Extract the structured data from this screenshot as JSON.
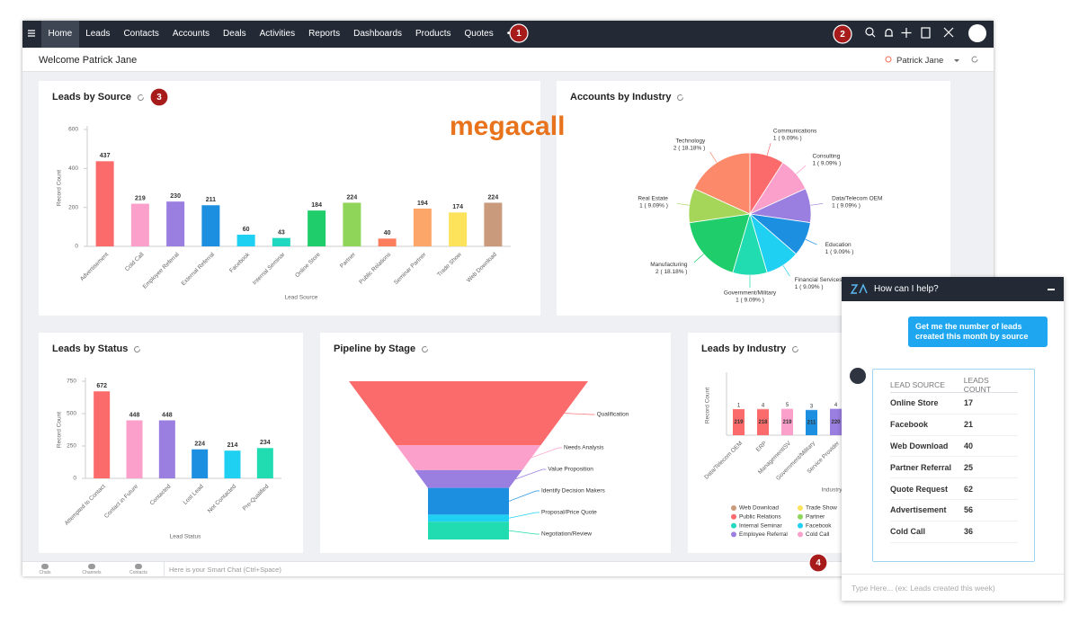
{
  "nav": {
    "items": [
      "Home",
      "Leads",
      "Contacts",
      "Accounts",
      "Deals",
      "Activities",
      "Reports",
      "Dashboards",
      "Products",
      "Quotes",
      "•••"
    ]
  },
  "callouts": [
    "1",
    "2",
    "3",
    "4"
  ],
  "header": {
    "welcome": "Welcome Patrick Jane",
    "user": "Patrick Jane"
  },
  "leads_by_source": {
    "type": "bar",
    "title": "Leads by Source",
    "logo": "megacall",
    "x_label": "Lead Source",
    "y_label": "Record Count",
    "categories": [
      "Advertisement",
      "Cold Call",
      "Employee Referral",
      "External Referral",
      "Facebook",
      "Internal Seminar",
      "Online Store",
      "Partner",
      "Public Relations",
      "Seminar Partner",
      "Trade Show",
      "Web Download"
    ],
    "values": [
      437,
      219,
      230,
      211,
      60,
      43,
      184,
      224,
      40,
      194,
      174,
      224
    ],
    "colors": [
      "#fc6b6b",
      "#fb9fcb",
      "#9a7ee0",
      "#1d8fe0",
      "#1fd0f2",
      "#20d8c0",
      "#1fce6a",
      "#8ed55a",
      "#fb7d5e",
      "#fca66a",
      "#fde25c",
      "#c99a7c"
    ],
    "ylim": [
      0,
      600
    ],
    "yticks": [
      0,
      200,
      400,
      600
    ]
  },
  "accounts_by_industry": {
    "type": "pie",
    "title": "Accounts by Industry",
    "categories": [
      "Communications",
      "Consulting",
      "Data/Telecom OEM",
      "Education",
      "Financial Services",
      "Government/Military",
      "Manufacturing",
      "Real Estate",
      "Technology"
    ],
    "values": [
      1,
      1,
      1,
      1,
      1,
      1,
      2,
      1,
      2
    ],
    "value_labels": [
      "1 ( 9.09% )",
      "1 ( 9.09% )",
      "1 ( 9.09% )",
      "1 ( 9.09% )",
      "1 ( 9.09% )",
      "1 ( 9.09% )",
      "2 ( 18.18% )",
      "1 ( 9.09% )",
      "2 ( 18.18% )"
    ],
    "colors": [
      "#fc6b6b",
      "#fb9fcb",
      "#9a7ee0",
      "#1d8fe0",
      "#1fd0f2",
      "#20dcb0",
      "#1fce6a",
      "#a5d65a",
      "#fc8a6a"
    ]
  },
  "leads_by_status": {
    "type": "bar",
    "title": "Leads by Status",
    "x_label": "Lead Status",
    "y_label": "Record Count",
    "categories": [
      "Attempted to Contact",
      "Contact in Future",
      "Contacted",
      "Lost Lead",
      "Not Contacted",
      "Pre-Qualified"
    ],
    "values": [
      672,
      448,
      448,
      224,
      214,
      234
    ],
    "colors": [
      "#fc6b6b",
      "#fb9fcb",
      "#9a7ee0",
      "#1d8fe0",
      "#1fd0f2",
      "#20dcb0"
    ],
    "ylim": [
      0,
      750
    ],
    "yticks": [
      0,
      250,
      500,
      750
    ]
  },
  "pipeline_by_stage": {
    "type": "funnel",
    "title": "Pipeline by Stage",
    "categories": [
      "Qualification",
      "Needs Analysis",
      "Value Proposition",
      "Identify Decision Makers",
      "Proposal/Price Quote",
      "Negotiation/Review"
    ],
    "values": [
      36,
      14,
      10,
      15,
      4,
      10
    ],
    "colors": [
      "#fc6b6b",
      "#fb9fcb",
      "#9a7ee0",
      "#1d8fe0",
      "#1fd0f2",
      "#20dcb0"
    ]
  },
  "leads_by_industry": {
    "type": "bar",
    "title": "Leads by Industry",
    "x_label": "Industry",
    "y_label": "Record Count",
    "categories": [
      "Data/Telecom OEM",
      "ERP",
      "ManagementISV",
      "Government/Military",
      "Service Provider"
    ],
    "values": [
      219,
      218,
      219,
      211,
      220
    ],
    "top_values": [
      1,
      4,
      5,
      3,
      4
    ],
    "colors": [
      "#fc6b6b",
      "#fc6b6b",
      "#fb9fcb",
      "#1d8fe0",
      "#9a7ee0"
    ],
    "ylim": [
      0,
      500
    ],
    "legend": [
      {
        "name": "Web Download",
        "color": "#c99a7c"
      },
      {
        "name": "Trade Show",
        "color": "#fde25c"
      },
      {
        "name": "Public Relations",
        "color": "#fc6b6b"
      },
      {
        "name": "Partner",
        "color": "#8ed55a"
      },
      {
        "name": "Internal Seminar",
        "color": "#20d8c0"
      },
      {
        "name": "Facebook",
        "color": "#1fd0f2"
      },
      {
        "name": "Employee Referral",
        "color": "#9a7ee0"
      },
      {
        "name": "Cold Call",
        "color": "#fb9fcb"
      }
    ]
  },
  "bottom_bar": {
    "tabs": [
      "Chats",
      "Channels",
      "Contacts"
    ],
    "smart_chat": "Here is your Smart Chat (Ctrl+Space)"
  },
  "chat": {
    "title": "How can I help?",
    "query": "Get me the number of leads created this month by source",
    "table": {
      "headers": [
        "LEAD SOURCE",
        "LEADS COUNT"
      ],
      "rows": [
        [
          "Online Store",
          17
        ],
        [
          "Facebook",
          21
        ],
        [
          "Web Download",
          40
        ],
        [
          "Partner Referral",
          25
        ],
        [
          "Quote Request",
          62
        ],
        [
          "Advertisement",
          56
        ],
        [
          "Cold Call",
          36
        ]
      ]
    },
    "placeholder": "Type Here... (ex: Leads created this week)"
  }
}
